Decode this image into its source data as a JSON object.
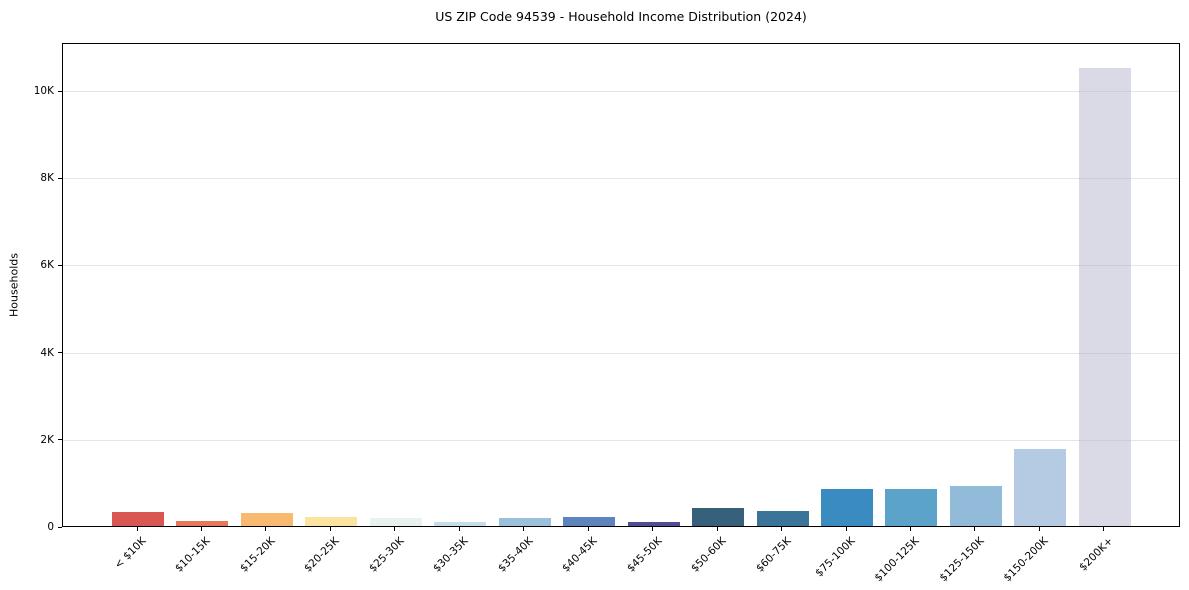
{
  "chart_data": {
    "type": "bar",
    "title": "US ZIP Code 94539 - Household Income Distribution (2024)",
    "xlabel": "",
    "ylabel": "Households",
    "categories": [
      "< $10K",
      "$10-15K",
      "$15-20K",
      "$20-25K",
      "$25-30K",
      "$30-35K",
      "$35-40K",
      "$40-45K",
      "$45-50K",
      "$50-60K",
      "$60-75K",
      "$75-100K",
      "$100-125K",
      "$125-150K",
      "$150-200K",
      "$200K+"
    ],
    "values": [
      330,
      120,
      290,
      210,
      185,
      90,
      180,
      200,
      100,
      420,
      350,
      860,
      860,
      920,
      1760,
      10500
    ],
    "bar_colors": [
      "#d95752",
      "#e8765a",
      "#f8b971",
      "#fce3a0",
      "#e7f1ee",
      "#c5dcea",
      "#9ac0dc",
      "#5d84bd",
      "#514d95",
      "#37607a",
      "#3a7599",
      "#398bc0",
      "#5ba3c9",
      "#92bbda",
      "#b4cbe3",
      "#d9dae6"
    ],
    "ylim": [
      0,
      11100
    ],
    "yticks": [
      {
        "value": 0,
        "label": "0"
      },
      {
        "value": 2000,
        "label": "2K"
      },
      {
        "value": 4000,
        "label": "4K"
      },
      {
        "value": 6000,
        "label": "6K"
      },
      {
        "value": 8000,
        "label": "8K"
      },
      {
        "value": 10000,
        "label": "10K"
      }
    ],
    "grid": "horizontal",
    "legend": "none",
    "axis_color": "#000000",
    "background_color": "#ffffff"
  }
}
